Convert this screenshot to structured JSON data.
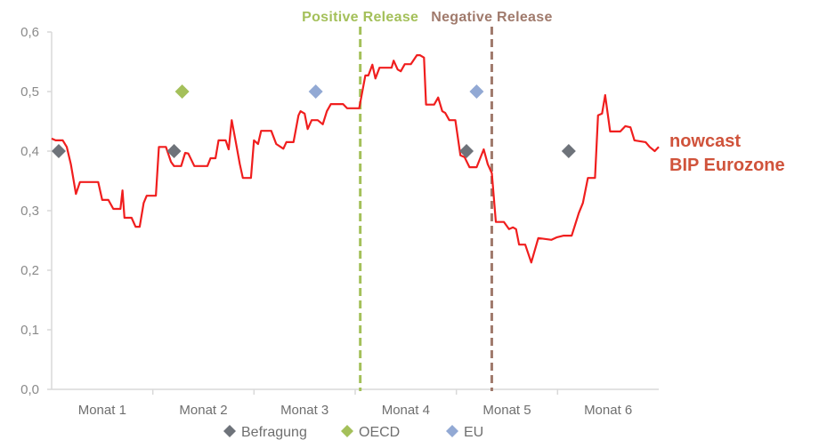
{
  "chart_data": {
    "type": "line",
    "title": "",
    "xlabel": "",
    "ylabel": "",
    "xlim": [
      0,
      6
    ],
    "ylim": [
      0,
      0.6
    ],
    "yticks": [
      "0,0",
      "0,1",
      "0,2",
      "0,3",
      "0,4",
      "0,5",
      "0,6"
    ],
    "ytick_values": [
      0,
      0.1,
      0.2,
      0.3,
      0.4,
      0.5,
      0.6
    ],
    "categories": [
      "Monat 1",
      "Monat 2",
      "Monat 3",
      "Monat 4",
      "Monat 5",
      "Monat 6"
    ],
    "grid": false,
    "line_series": {
      "name": "nowcast BIP Eurozone",
      "label_lines": [
        "nowcast",
        "BIP Eurozone"
      ],
      "color": "#f01e1e",
      "x": [
        0.0,
        0.04,
        0.11,
        0.15,
        0.19,
        0.24,
        0.28,
        0.46,
        0.5,
        0.56,
        0.61,
        0.68,
        0.7,
        0.72,
        0.79,
        0.83,
        0.87,
        0.91,
        0.94,
        1.03,
        1.06,
        1.13,
        1.18,
        1.21,
        1.28,
        1.32,
        1.35,
        1.41,
        1.54,
        1.57,
        1.62,
        1.65,
        1.72,
        1.75,
        1.78,
        1.82,
        1.86,
        1.89,
        1.97,
        2.0,
        2.04,
        2.07,
        2.17,
        2.22,
        2.29,
        2.32,
        2.39,
        2.44,
        2.46,
        2.5,
        2.53,
        2.57,
        2.63,
        2.68,
        2.72,
        2.76,
        2.88,
        2.92,
        3.04,
        3.1,
        3.13,
        3.17,
        3.2,
        3.24,
        3.36,
        3.38,
        3.42,
        3.45,
        3.49,
        3.55,
        3.61,
        3.64,
        3.68,
        3.7,
        3.78,
        3.82,
        3.86,
        3.89,
        3.93,
        3.99,
        4.04,
        4.08,
        4.13,
        4.2,
        4.27,
        4.31,
        4.35,
        4.39,
        4.47,
        4.52,
        4.56,
        4.59,
        4.62,
        4.68,
        4.74,
        4.81,
        4.94,
        4.99,
        5.06,
        5.14,
        5.21,
        5.25,
        5.3,
        5.37,
        5.4,
        5.44,
        5.47,
        5.52,
        5.62,
        5.67,
        5.72,
        5.76,
        5.87,
        5.91,
        5.96,
        6.0
      ],
      "y": [
        0.421,
        0.418,
        0.418,
        0.407,
        0.378,
        0.328,
        0.348,
        0.348,
        0.318,
        0.318,
        0.303,
        0.303,
        0.334,
        0.288,
        0.288,
        0.273,
        0.273,
        0.313,
        0.325,
        0.325,
        0.407,
        0.407,
        0.382,
        0.375,
        0.375,
        0.397,
        0.396,
        0.375,
        0.375,
        0.388,
        0.388,
        0.418,
        0.418,
        0.403,
        0.452,
        0.415,
        0.378,
        0.355,
        0.355,
        0.418,
        0.412,
        0.434,
        0.434,
        0.412,
        0.404,
        0.415,
        0.415,
        0.46,
        0.467,
        0.463,
        0.437,
        0.452,
        0.452,
        0.445,
        0.467,
        0.479,
        0.479,
        0.472,
        0.472,
        0.527,
        0.527,
        0.545,
        0.522,
        0.54,
        0.54,
        0.552,
        0.537,
        0.534,
        0.546,
        0.546,
        0.561,
        0.561,
        0.557,
        0.478,
        0.478,
        0.49,
        0.467,
        0.464,
        0.452,
        0.452,
        0.393,
        0.39,
        0.373,
        0.373,
        0.403,
        0.378,
        0.363,
        0.281,
        0.281,
        0.269,
        0.272,
        0.269,
        0.243,
        0.243,
        0.213,
        0.254,
        0.251,
        0.255,
        0.258,
        0.258,
        0.296,
        0.313,
        0.355,
        0.355,
        0.46,
        0.463,
        0.494,
        0.433,
        0.433,
        0.442,
        0.44,
        0.418,
        0.415,
        0.407,
        0.4,
        0.407
      ]
    },
    "marker_series": [
      {
        "name": "Befragung",
        "color": "#6e737a",
        "x": [
          0.07,
          1.21,
          4.1,
          5.11
        ],
        "y": [
          0.4,
          0.4,
          0.4,
          0.4
        ]
      },
      {
        "name": "OECD",
        "color": "#a4c05a",
        "x": [
          1.29
        ],
        "y": [
          0.5
        ]
      },
      {
        "name": "EU",
        "color": "#92a9d4",
        "x": [
          2.61,
          4.2
        ],
        "y": [
          0.5,
          0.5
        ]
      }
    ],
    "vertical_lines": [
      {
        "label": "Positive Release",
        "x": 3.05,
        "color": "#a4c05a"
      },
      {
        "label": "Negative Release",
        "x": 4.35,
        "color": "#a07a6c"
      }
    ],
    "legend_placement": "bottom"
  }
}
